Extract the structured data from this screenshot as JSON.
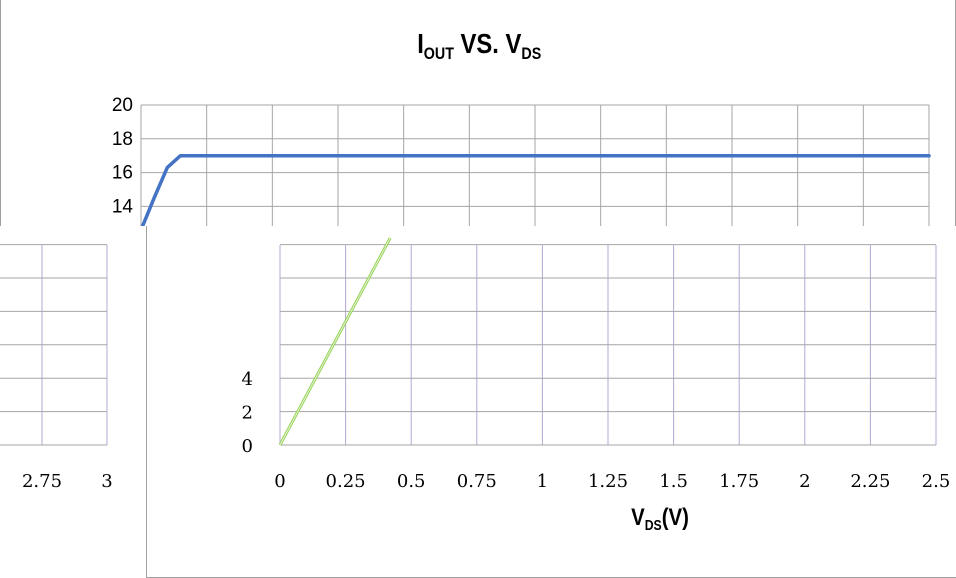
{
  "chart_data": [
    {
      "type": "line",
      "panel": "top",
      "title": "I",
      "title_sub": "OUT",
      "title_mid": " VS. V",
      "title_sub2": "DS",
      "x_range": [
        0,
        3
      ],
      "ylim": [
        12,
        20
      ],
      "y_ticks": [
        20,
        18,
        16,
        14
      ],
      "grid": true,
      "series": [
        {
          "color": "#4472c4",
          "x": [
            0,
            0.05,
            0.1,
            0.15,
            0.2,
            0.25,
            0.35,
            0.5,
            1,
            2,
            3
          ],
          "y": [
            12.6,
            14.5,
            16.3,
            17.0,
            17.0,
            17.0,
            17.0,
            17.0,
            17.0,
            17.0,
            17.0
          ]
        }
      ]
    },
    {
      "type": "line",
      "panel": "bottom",
      "xlabel": "V",
      "xlabel_sub": "DS",
      "xlabel_unit": "(V)",
      "x_ticks": [
        "0",
        "0.25",
        "0.5",
        "0.75",
        "1",
        "1.25",
        "1.5",
        "1.75",
        "2",
        "2.25",
        "2.5",
        "2.75",
        "3"
      ],
      "xlim": [
        0,
        3
      ],
      "y_ticks": [
        "0",
        "2",
        "4"
      ],
      "ylim": [
        0,
        12
      ],
      "grid": true,
      "series": [
        {
          "color": "#92d050",
          "x": [
            0,
            0.42
          ],
          "y": [
            0,
            12.4
          ]
        }
      ]
    }
  ]
}
